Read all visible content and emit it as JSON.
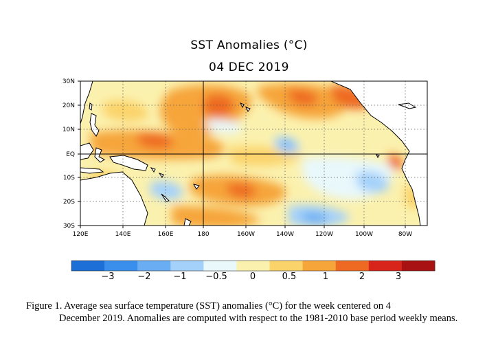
{
  "title": "SST Anomalies (°C)",
  "date": "04 DEC 2019",
  "map": {
    "latitude_labels": [
      "30N",
      "20N",
      "10N",
      "EQ",
      "10S",
      "20S",
      "30S"
    ],
    "longitude_labels": [
      "120E",
      "140E",
      "160E",
      "180",
      "160W",
      "140W",
      "120W",
      "100W",
      "80W"
    ],
    "land_color": "#ffffff",
    "coast_color": "#000000",
    "grid": "dotted"
  },
  "colorbar": {
    "tick_labels": [
      "−3",
      "−2",
      "−1",
      "−0.5",
      "0",
      "0.5",
      "1",
      "2",
      "3"
    ],
    "colors": [
      "#1d6fd8",
      "#3a8fec",
      "#6aadf3",
      "#a4d1fa",
      "#e8f8fb",
      "#fbf1ae",
      "#fbd36b",
      "#f6a53a",
      "#ee6a22",
      "#d8251c",
      "#a81212"
    ]
  },
  "caption": {
    "line1": "Figure 1. Average sea surface temperature (SST) anomalies (°C) for the week centered on 4",
    "rest": "December 2019.  Anomalies are computed with respect to the 1981-2010 base period weekly means."
  }
}
